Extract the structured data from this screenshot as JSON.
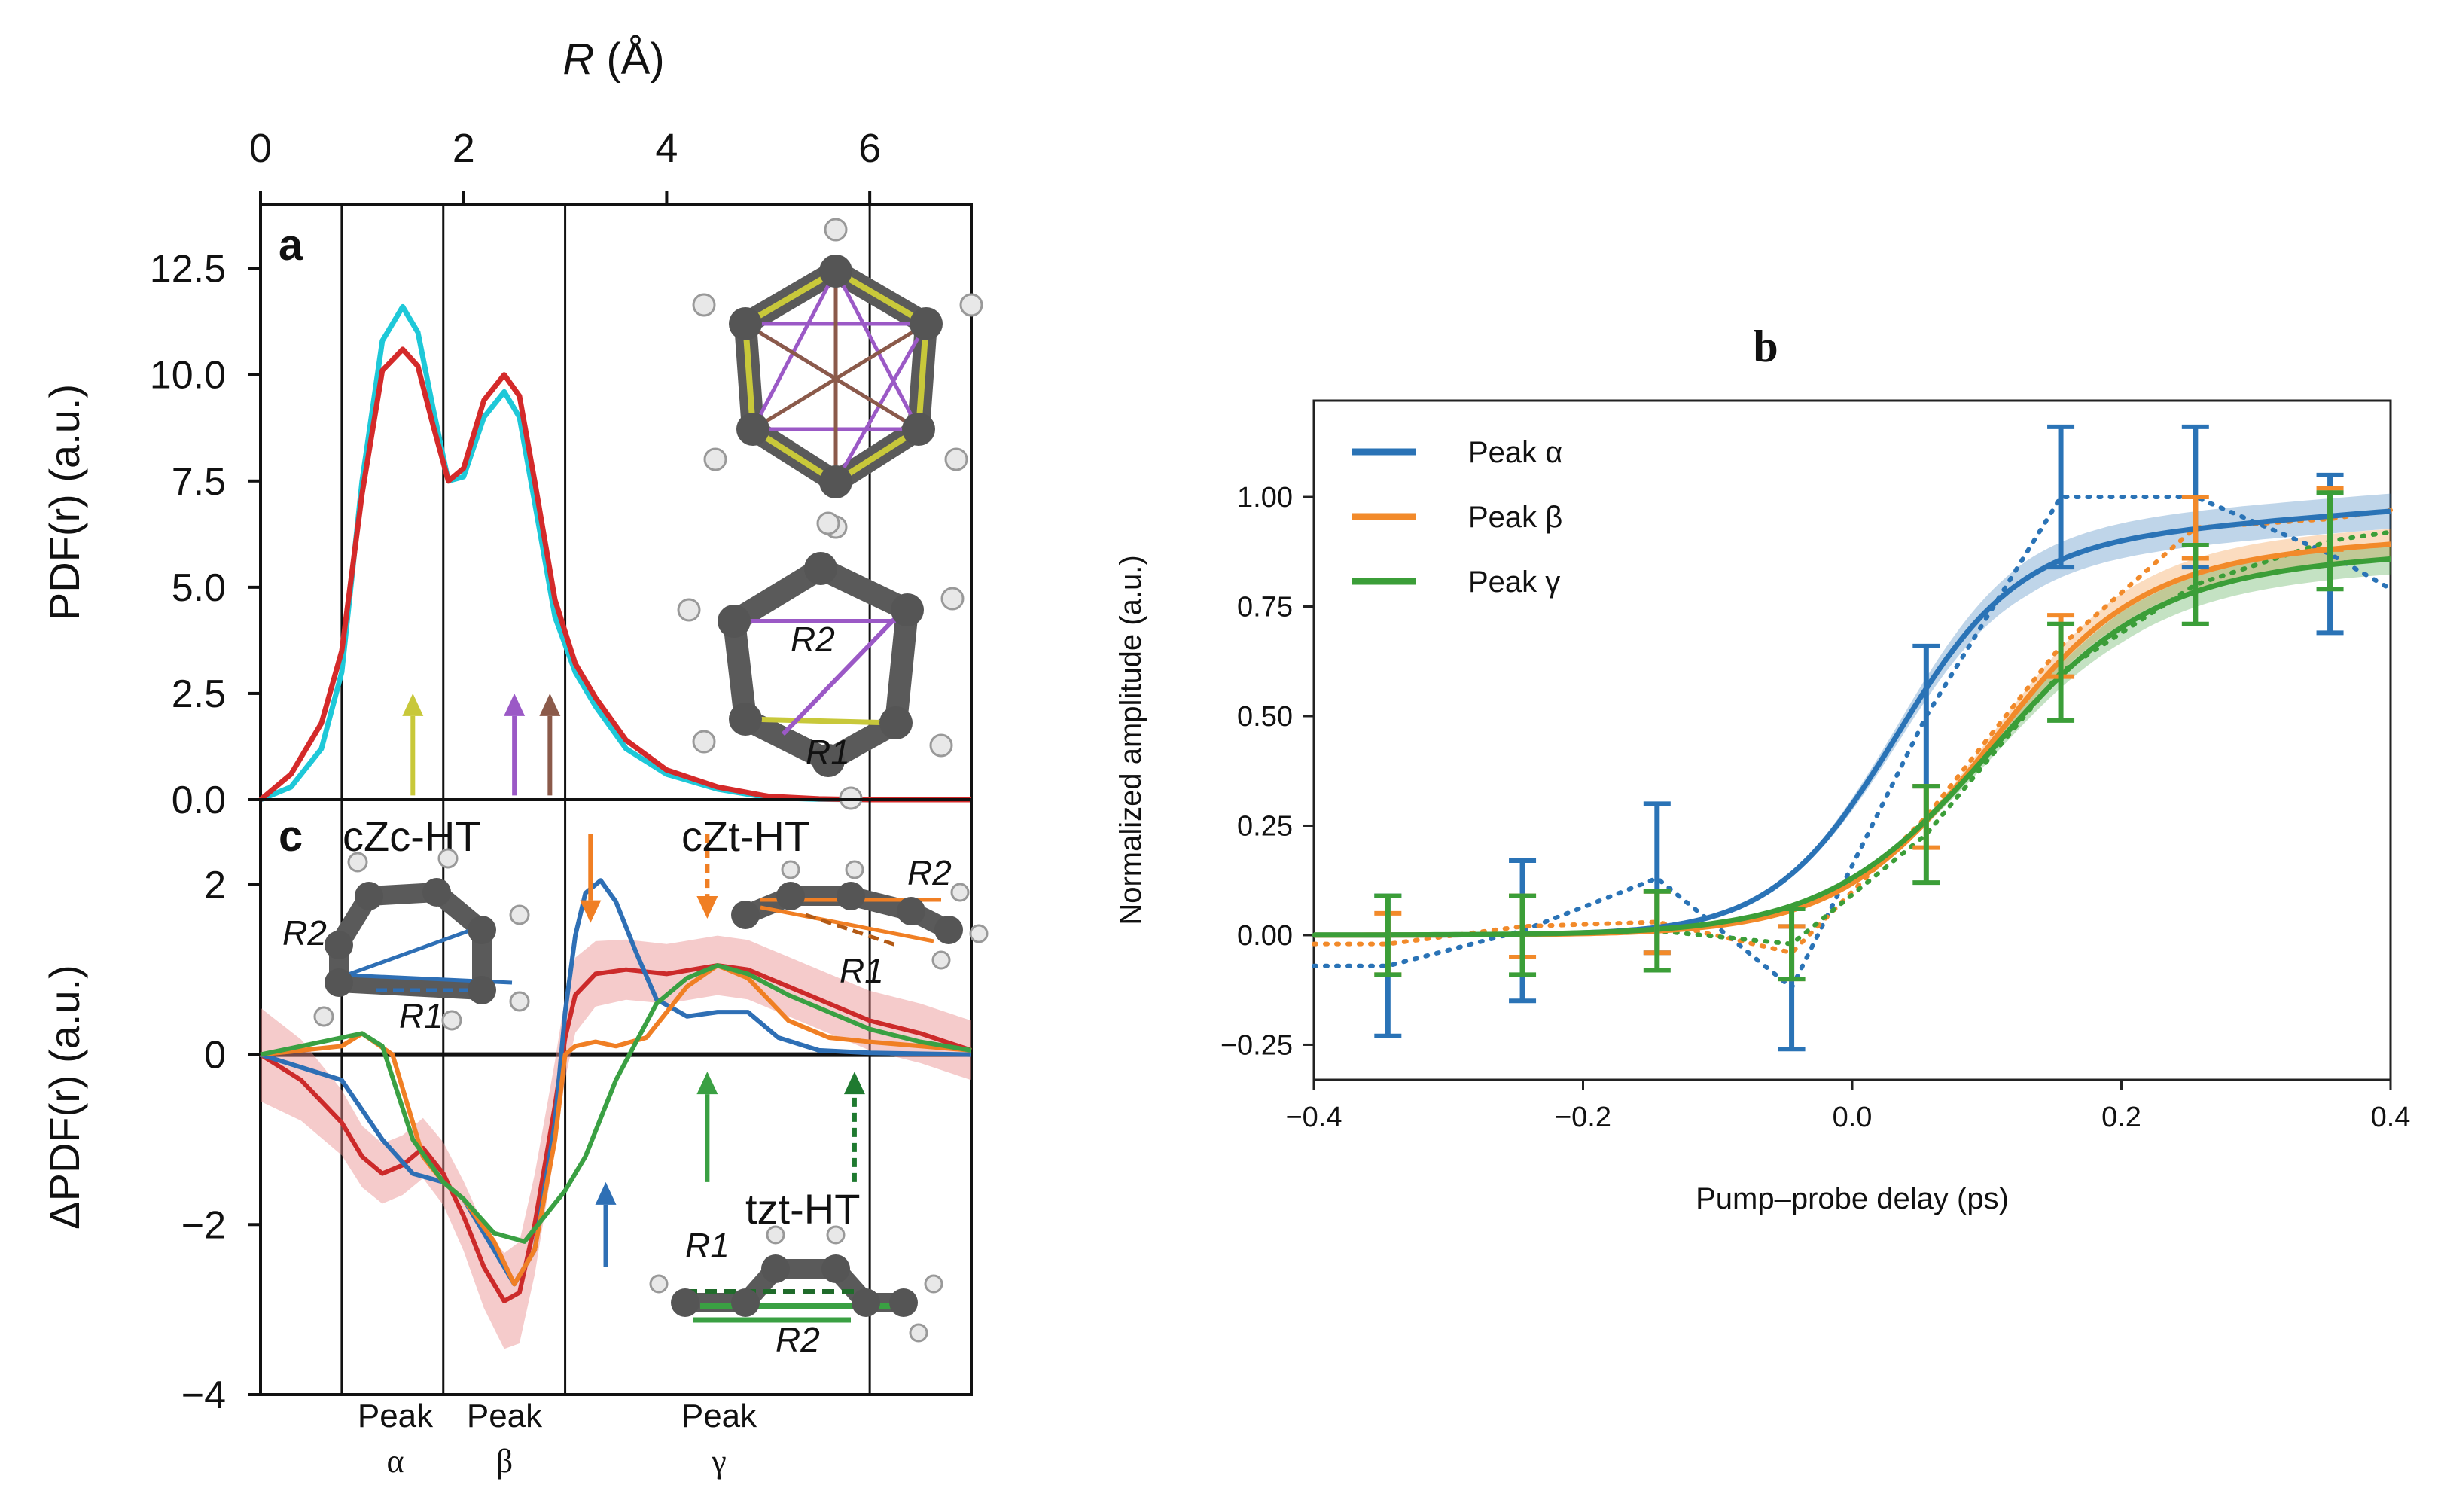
{
  "chart_data": [
    {
      "panel": "a",
      "type": "line",
      "title": "",
      "panel_label": "a",
      "top_axis_label": "R (Å)",
      "ylabel": "PDF(r) (a.u.)",
      "xlim": [
        0,
        7
      ],
      "ylim": [
        0,
        14
      ],
      "x_ticks": [
        "0",
        "2",
        "4",
        "6"
      ],
      "x_tick_values": [
        0,
        2,
        4,
        6
      ],
      "y_ticks": [
        "0.0",
        "2.5",
        "5.0",
        "7.5",
        "10.0",
        "12.5"
      ],
      "y_tick_values": [
        0,
        2.5,
        5,
        7.5,
        10,
        12.5
      ],
      "region_boundaries": [
        0.8,
        1.8,
        3.0,
        6.0
      ],
      "colors": {
        "cyan": "#1ec8d8",
        "red": "#d42a2a",
        "yellow": "#c8c83a",
        "purple": "#9b59c6",
        "brown": "#8b5a4a"
      },
      "series": [
        {
          "name": "cyan",
          "color": "#1ec8d8",
          "x": [
            0,
            0.3,
            0.6,
            0.8,
            1.0,
            1.2,
            1.4,
            1.55,
            1.7,
            1.85,
            2.0,
            2.2,
            2.4,
            2.55,
            2.7,
            2.9,
            3.1,
            3.3,
            3.6,
            4.0,
            4.5,
            5.0,
            5.5,
            6.0,
            7.0
          ],
          "y": [
            0,
            0.3,
            1.2,
            3.0,
            7.5,
            10.8,
            11.6,
            11.0,
            9.2,
            7.5,
            7.6,
            9.0,
            9.6,
            9.0,
            7.0,
            4.3,
            3.0,
            2.2,
            1.2,
            0.6,
            0.25,
            0.05,
            0.01,
            0,
            0
          ]
        },
        {
          "name": "red",
          "color": "#d42a2a",
          "x": [
            0,
            0.3,
            0.6,
            0.8,
            1.0,
            1.2,
            1.4,
            1.55,
            1.7,
            1.85,
            2.0,
            2.2,
            2.4,
            2.55,
            2.7,
            2.9,
            3.1,
            3.3,
            3.6,
            4.0,
            4.5,
            5.0,
            5.5,
            6.0,
            7.0
          ],
          "y": [
            0,
            0.6,
            1.8,
            3.5,
            7.2,
            10.1,
            10.6,
            10.2,
            8.8,
            7.5,
            7.8,
            9.4,
            10.0,
            9.5,
            7.5,
            4.7,
            3.2,
            2.4,
            1.4,
            0.7,
            0.3,
            0.08,
            0.02,
            0,
            0
          ]
        }
      ],
      "arrows": [
        {
          "x": 1.5,
          "color": "#c8c83a",
          "y_from": 0.1,
          "y_to": 2.5
        },
        {
          "x": 2.5,
          "color": "#9b59c6",
          "y_from": 0.1,
          "y_to": 2.5
        },
        {
          "x": 2.85,
          "color": "#8b5a4a",
          "y_from": 0.1,
          "y_to": 2.5
        }
      ],
      "molecule_labels": [
        "R2",
        "R1"
      ]
    },
    {
      "panel": "c",
      "type": "line",
      "panel_label": "c",
      "ylabel": "ΔPDF(r) (a.u.)",
      "xlim": [
        0,
        7
      ],
      "ylim": [
        -4,
        3
      ],
      "y_ticks": [
        "−4",
        "−2",
        "0",
        "2"
      ],
      "y_tick_values": [
        -4,
        -2,
        0,
        2
      ],
      "region_boundaries": [
        0.8,
        1.8,
        3.0,
        6.0
      ],
      "region_labels": [
        {
          "line1": "Peak",
          "line2": "α",
          "x": 1.3
        },
        {
          "line1": "Peak",
          "line2": "β",
          "x": 2.4
        },
        {
          "line1": "Peak",
          "line2": "γ",
          "x": 4.5
        }
      ],
      "annotations": [
        {
          "text": "cZc-HT",
          "color": "#2e6fb5"
        },
        {
          "text": "cZt-HT",
          "color": "#f07f24"
        },
        {
          "text": "tzt-HT",
          "color": "#3aa043"
        }
      ],
      "molecule_labels": {
        "czc_r2": "R2",
        "czc_r1": "R1",
        "czt_r2": "R2",
        "czt_r1": "R1",
        "tzt_r1": "R1",
        "tzt_r2": "R2"
      },
      "series": [
        {
          "name": "red (experiment)",
          "color": "#cc2a2a",
          "x": [
            0,
            0.4,
            0.8,
            1.0,
            1.2,
            1.4,
            1.6,
            1.8,
            2.0,
            2.2,
            2.4,
            2.55,
            2.7,
            2.9,
            3.0,
            3.1,
            3.3,
            3.6,
            4.0,
            4.5,
            4.8,
            5.2,
            5.6,
            6.0,
            6.5,
            7.0
          ],
          "y": [
            0,
            -0.3,
            -0.8,
            -1.2,
            -1.4,
            -1.3,
            -1.1,
            -1.4,
            -1.9,
            -2.5,
            -2.9,
            -2.8,
            -2.0,
            -0.6,
            0.2,
            0.7,
            0.95,
            1.0,
            0.95,
            1.05,
            1.0,
            0.8,
            0.6,
            0.4,
            0.25,
            0.05
          ]
        },
        {
          "name": "cZc-HT",
          "color": "#2e6fb5",
          "x": [
            0,
            0.8,
            1.2,
            1.5,
            1.8,
            2.0,
            2.3,
            2.5,
            2.7,
            2.9,
            3.0,
            3.1,
            3.2,
            3.35,
            3.5,
            3.7,
            3.9,
            4.2,
            4.5,
            4.8,
            5.1,
            5.5,
            6.0,
            7.0
          ],
          "y": [
            0,
            -0.3,
            -1.0,
            -1.4,
            -1.5,
            -1.7,
            -2.3,
            -2.7,
            -2.3,
            -0.8,
            0.5,
            1.4,
            1.9,
            2.05,
            1.8,
            1.2,
            0.65,
            0.45,
            0.5,
            0.5,
            0.2,
            0.05,
            0.02,
            0
          ]
        },
        {
          "name": "cZt-HT",
          "color": "#f07f24",
          "x": [
            0,
            0.8,
            1.0,
            1.3,
            1.6,
            1.8,
            2.0,
            2.3,
            2.5,
            2.7,
            2.9,
            3.0,
            3.1,
            3.3,
            3.5,
            3.8,
            4.2,
            4.5,
            4.8,
            5.2,
            5.6,
            6.0,
            6.5,
            7.0
          ],
          "y": [
            0,
            0.1,
            0.25,
            0.0,
            -1.2,
            -1.5,
            -1.7,
            -2.2,
            -2.7,
            -2.3,
            -1.0,
            0.0,
            0.1,
            0.15,
            0.1,
            0.2,
            0.8,
            1.05,
            0.9,
            0.4,
            0.2,
            0.15,
            0.1,
            0.05
          ]
        },
        {
          "name": "tzt-HT",
          "color": "#3aa043",
          "x": [
            0,
            0.8,
            1.0,
            1.2,
            1.5,
            1.8,
            2.0,
            2.3,
            2.6,
            2.8,
            3.0,
            3.2,
            3.5,
            3.9,
            4.2,
            4.5,
            4.8,
            5.2,
            5.6,
            6.0,
            6.5,
            7.0
          ],
          "y": [
            0,
            0.2,
            0.25,
            0.1,
            -1.0,
            -1.5,
            -1.7,
            -2.1,
            -2.2,
            -1.9,
            -1.6,
            -1.2,
            -0.3,
            0.6,
            0.9,
            1.05,
            0.95,
            0.7,
            0.5,
            0.3,
            0.15,
            0.05
          ]
        }
      ],
      "arrows": [
        {
          "x": 3.25,
          "color": "#f07f24",
          "y_from": 2.6,
          "y_to": 1.55,
          "style": "solid"
        },
        {
          "x": 4.4,
          "color": "#f07f24",
          "y_from": 2.6,
          "y_to": 1.6,
          "style": "dashed"
        },
        {
          "x": 3.4,
          "color": "#2e6fb5",
          "y_from": -2.5,
          "y_to": -1.5,
          "style": "solid"
        },
        {
          "x": 4.4,
          "color": "#3aa043",
          "y_from": -1.5,
          "y_to": -0.2,
          "style": "solid"
        },
        {
          "x": 5.85,
          "color": "#1f7a30",
          "y_from": -1.5,
          "y_to": -0.2,
          "style": "dashed"
        }
      ]
    },
    {
      "panel": "b",
      "type": "line",
      "panel_label": "b",
      "xlabel": "Pump–probe delay (ps)",
      "ylabel": "Normalized amplitude (a.u.)",
      "xlim": [
        -0.4,
        0.4
      ],
      "ylim": [
        -0.33,
        1.22
      ],
      "x_ticks": [
        "−0.4",
        "−0.2",
        "0.0",
        "0.2",
        "0.4"
      ],
      "x_tick_values": [
        -0.4,
        -0.2,
        0.0,
        0.2,
        0.4
      ],
      "y_ticks": [
        "−0.25",
        "0.00",
        "0.25",
        "0.50",
        "0.75",
        "1.00"
      ],
      "y_tick_values": [
        -0.25,
        0,
        0.25,
        0.5,
        0.75,
        1.0
      ],
      "legend": [
        "Peak α",
        "Peak β",
        "Peak γ"
      ],
      "legend_position": "top-left",
      "colors": {
        "alpha": "#2a73b6",
        "beta": "#f28a2a",
        "gamma": "#3b9e38"
      },
      "fit_models": [
        {
          "name": "Peak α",
          "color": "#2a73b6",
          "t0": 0.03,
          "width": 0.045,
          "ampl": 0.88,
          "slope": 0.45,
          "band": 0.04
        },
        {
          "name": "Peak β",
          "color": "#f28a2a",
          "t0": 0.1,
          "width": 0.055,
          "ampl": 0.85,
          "slope": 0.3,
          "band": 0.035
        },
        {
          "name": "Peak γ",
          "color": "#3b9e38",
          "t0": 0.1,
          "width": 0.06,
          "ampl": 0.82,
          "slope": 0.3,
          "band": 0.035
        }
      ],
      "measured": [
        {
          "name": "Peak α",
          "color": "#2a73b6",
          "x": [
            -0.345,
            -0.245,
            -0.145,
            -0.045,
            0.055,
            0.155,
            0.255,
            0.355
          ],
          "y": [
            -0.07,
            0.01,
            0.13,
            -0.12,
            0.5,
            1.0,
            1.0,
            0.87
          ],
          "err": [
            0.16,
            0.16,
            0.17,
            0.14,
            0.16,
            0.16,
            0.16,
            0.18
          ],
          "dotted_end": [
            0.4,
            0.79
          ]
        },
        {
          "name": "Peak β",
          "color": "#f28a2a",
          "x": [
            -0.345,
            -0.245,
            -0.145,
            -0.045,
            0.055,
            0.155,
            0.255,
            0.355
          ],
          "y": [
            -0.02,
            0.02,
            0.03,
            -0.04,
            0.27,
            0.66,
            0.93,
            0.95
          ],
          "err": [
            0.07,
            0.07,
            0.07,
            0.06,
            0.07,
            0.07,
            0.07,
            0.07
          ]
        },
        {
          "name": "Peak γ",
          "color": "#3b9e38",
          "x": [
            -0.345,
            -0.245,
            -0.145,
            -0.045,
            0.055,
            0.155,
            0.255,
            0.355
          ],
          "y": [
            0.0,
            0.0,
            0.01,
            -0.02,
            0.23,
            0.6,
            0.8,
            0.9
          ],
          "err": [
            0.09,
            0.09,
            0.09,
            0.08,
            0.11,
            0.11,
            0.09,
            0.11
          ]
        }
      ]
    }
  ]
}
